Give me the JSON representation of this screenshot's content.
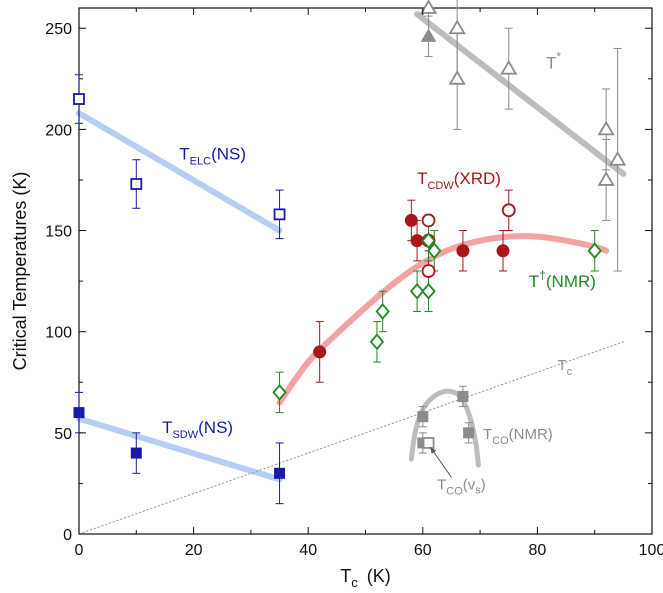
{
  "chart_data": {
    "type": "scatter",
    "xlabel": "T_c (K)",
    "ylabel": "Critical Temperatures (K)",
    "xlim": [
      0,
      100
    ],
    "ylim": [
      0,
      260
    ],
    "xticks": [
      0,
      20,
      40,
      60,
      80,
      100
    ],
    "yticks": [
      0,
      50,
      100,
      150,
      200,
      250
    ],
    "grid": false,
    "series": [
      {
        "name": "T_ELC(NS)",
        "marker": "open-square",
        "color": "#1a1aa6",
        "points": [
          {
            "x": 0,
            "y": 215,
            "err": 12
          },
          {
            "x": 10,
            "y": 173,
            "err": 12
          },
          {
            "x": 35,
            "y": 158,
            "err": 12
          }
        ]
      },
      {
        "name": "T_SDW(NS)",
        "marker": "filled-square",
        "color": "#1a1aa6",
        "points": [
          {
            "x": 0,
            "y": 60,
            "err": 10
          },
          {
            "x": 10,
            "y": 40,
            "err": 10
          },
          {
            "x": 35,
            "y": 30,
            "err": 15
          }
        ]
      },
      {
        "name": "T_CDW(XRD)",
        "marker": "filled-circle",
        "color": "#a8161b",
        "points": [
          {
            "x": 42,
            "y": 90,
            "err": 15
          },
          {
            "x": 58,
            "y": 155,
            "err": 10
          },
          {
            "x": 59,
            "y": 145,
            "err": 10
          },
          {
            "x": 67,
            "y": 140,
            "err": 10
          },
          {
            "x": 74,
            "y": 140,
            "err": 10
          }
        ]
      },
      {
        "name": "T_CDW(XRD) open",
        "marker": "open-circle",
        "color": "#a8161b",
        "points": [
          {
            "x": 61,
            "y": 155,
            "err": 0
          },
          {
            "x": 61,
            "y": 145,
            "err": 0
          },
          {
            "x": 61,
            "y": 130,
            "err": 10
          },
          {
            "x": 75,
            "y": 160,
            "err": 10
          }
        ]
      },
      {
        "name": "T†(NMR)",
        "marker": "open-diamond",
        "color": "#1f8a1f",
        "points": [
          {
            "x": 35,
            "y": 70,
            "err": 10
          },
          {
            "x": 52,
            "y": 95,
            "err": 10
          },
          {
            "x": 53,
            "y": 110,
            "err": 10
          },
          {
            "x": 59,
            "y": 120,
            "err": 10
          },
          {
            "x": 61,
            "y": 145,
            "err": 10
          },
          {
            "x": 61,
            "y": 120,
            "err": 10
          },
          {
            "x": 62,
            "y": 140,
            "err": 10
          },
          {
            "x": 90,
            "y": 140,
            "err": 10
          }
        ]
      },
      {
        "name": "T*",
        "marker": "open-triangle",
        "color": "#8c8c8c",
        "points": [
          {
            "x": 61,
            "y": 260,
            "err": 15
          },
          {
            "x": 66,
            "y": 250,
            "err": 25
          },
          {
            "x": 66,
            "y": 225,
            "err": 25
          },
          {
            "x": 75,
            "y": 230,
            "err": 20
          },
          {
            "x": 92,
            "y": 200,
            "err": 20
          },
          {
            "x": 92,
            "y": 175,
            "err": 20
          },
          {
            "x": 94,
            "y": 185,
            "err": 55
          }
        ]
      },
      {
        "name": "T* filled",
        "marker": "filled-triangle",
        "color": "#8c8c8c",
        "points": [
          {
            "x": 61,
            "y": 246,
            "err": 10
          }
        ]
      },
      {
        "name": "T_CO(NMR)",
        "marker": "filled-square",
        "color": "#8c8c8c",
        "points": [
          {
            "x": 60,
            "y": 45,
            "err": 5
          },
          {
            "x": 60,
            "y": 58,
            "err": 5
          },
          {
            "x": 67,
            "y": 68,
            "err": 5
          },
          {
            "x": 68,
            "y": 50,
            "err": 5
          }
        ]
      },
      {
        "name": "T_CO(v_s)",
        "marker": "open-square",
        "color": "#8c8c8c",
        "points": [
          {
            "x": 61,
            "y": 45,
            "err": 0
          }
        ]
      }
    ],
    "guide_curves": [
      {
        "color": "#b7cdf2",
        "width": 6,
        "points": [
          [
            0,
            208
          ],
          [
            35,
            150
          ]
        ]
      },
      {
        "color": "#b7cdf2",
        "width": 6,
        "points": [
          [
            0,
            57
          ],
          [
            35,
            27
          ]
        ]
      },
      {
        "color": "#f4a3a3",
        "width": 6,
        "points": [
          [
            35,
            65
          ],
          [
            40,
            85
          ],
          [
            45,
            99
          ],
          [
            50,
            112
          ],
          [
            55,
            124
          ],
          [
            60,
            134
          ],
          [
            65,
            141
          ],
          [
            70,
            145
          ],
          [
            75,
            147
          ],
          [
            80,
            147
          ],
          [
            85,
            145
          ],
          [
            90,
            142
          ],
          [
            92,
            140
          ]
        ]
      },
      {
        "color": "#bdbdbd",
        "width": 6,
        "points": [
          [
            59,
            257
          ],
          [
            95,
            178
          ]
        ]
      },
      {
        "color": "#bdbdbd",
        "width": 5,
        "points": [
          [
            58,
            37
          ],
          [
            58.8,
            52
          ],
          [
            60.3,
            63
          ],
          [
            62.5,
            69
          ],
          [
            64.8,
            70.5
          ],
          [
            66.8,
            67
          ],
          [
            68.3,
            57
          ],
          [
            69.3,
            44
          ],
          [
            69.7,
            34
          ]
        ]
      },
      {
        "color": "#9a9a9a",
        "width": 1,
        "dotted": true,
        "points": [
          [
            0,
            0
          ],
          [
            95,
            95
          ]
        ]
      }
    ],
    "annotations": [
      {
        "main": "T",
        "sub": "ELC",
        "rest": "(NS)",
        "sup": "",
        "color": "#1a1aa6",
        "x": 17.5,
        "y": 185,
        "size": "normal"
      },
      {
        "main": "T",
        "sub": "SDW",
        "rest": "(NS)",
        "sup": "",
        "color": "#1a1aa6",
        "x": 14.5,
        "y": 50,
        "size": "normal"
      },
      {
        "main": "T",
        "sub": "CDW",
        "rest": "(XRD)",
        "sup": "",
        "color": "#a8161b",
        "x": 59,
        "y": 173,
        "size": "normal"
      },
      {
        "main": "T",
        "sub": "",
        "rest": "(NMR)",
        "sup": "†",
        "color": "#1f8a1f",
        "x": 78.5,
        "y": 122,
        "size": "normal"
      },
      {
        "main": "T",
        "sub": "",
        "rest": "",
        "sup": "*",
        "color": "#8c8c8c",
        "x": 81.5,
        "y": 230,
        "size": "normal"
      },
      {
        "main": "T",
        "sub": "c",
        "rest": "",
        "sup": "",
        "color": "#8c8c8c",
        "x": 83.5,
        "y": 81,
        "size": "small"
      },
      {
        "main": "T",
        "sub": "CO",
        "rest": "(NMR)",
        "sup": "",
        "color": "#8c8c8c",
        "x": 70.5,
        "y": 47,
        "size": "small"
      },
      {
        "main": "T",
        "sub": "CO",
        "rest": "(v",
        "sup": "",
        "color": "#8c8c8c",
        "x": 62.5,
        "y": 22,
        "size": "small",
        "tail": "s",
        "tail_after": ")"
      }
    ],
    "arrow": {
      "from": [
        65,
        28
      ],
      "to": [
        61.3,
        43
      ],
      "color": "#555555"
    }
  }
}
